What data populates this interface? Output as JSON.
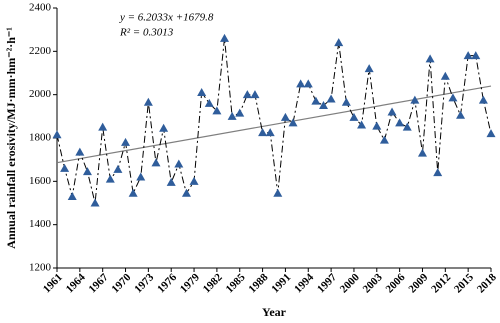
{
  "chart_data": {
    "type": "line",
    "xlabel": "Year",
    "ylabel": "Annual rainfall erosivity/MJ·mm·hm⁻²·h⁻¹",
    "annotations": [
      "y = 6.2033x +1679.8",
      "R² = 0.3013"
    ],
    "trendline": {
      "slope": 6.2033,
      "intercept": 1679.8,
      "color": "#7f7f7f"
    },
    "x": [
      1961,
      1962,
      1963,
      1964,
      1965,
      1966,
      1967,
      1968,
      1969,
      1970,
      1971,
      1972,
      1973,
      1974,
      1975,
      1976,
      1977,
      1978,
      1979,
      1980,
      1981,
      1982,
      1983,
      1984,
      1985,
      1986,
      1987,
      1988,
      1989,
      1990,
      1991,
      1992,
      1993,
      1994,
      1995,
      1996,
      1997,
      1998,
      1999,
      2000,
      2001,
      2002,
      2003,
      2004,
      2005,
      2006,
      2007,
      2008,
      2009,
      2010,
      2011,
      2012,
      2013,
      2014,
      2015,
      2016,
      2017,
      2018
    ],
    "series": [
      {
        "color": "#2f5d9b",
        "values": [
          1815,
          1660,
          1530,
          1735,
          1645,
          1500,
          1850,
          1610,
          1655,
          1780,
          1545,
          1620,
          1965,
          1685,
          1845,
          1595,
          1680,
          1545,
          1600,
          2010,
          1960,
          1925,
          2260,
          1900,
          1915,
          2000,
          2000,
          1825,
          1825,
          1545,
          1895,
          1870,
          2050,
          2050,
          1970,
          1950,
          1980,
          2240,
          1965,
          1895,
          1860,
          2120,
          1855,
          1790,
          1920,
          1870,
          1850,
          1975,
          1730,
          2165,
          1640,
          2085,
          1985,
          1905,
          2180,
          2180,
          1975,
          1820
        ]
      }
    ],
    "xlim": [
      1961,
      2018
    ],
    "xticks": [
      1961,
      1964,
      1967,
      1970,
      1973,
      1976,
      1979,
      1982,
      1985,
      1988,
      1991,
      1994,
      1997,
      2000,
      2003,
      2006,
      2009,
      2012,
      2015,
      2018
    ],
    "ylim": [
      1200,
      2400
    ],
    "yticks": [
      1200,
      1400,
      1600,
      1800,
      2000,
      2200,
      2400
    ]
  }
}
